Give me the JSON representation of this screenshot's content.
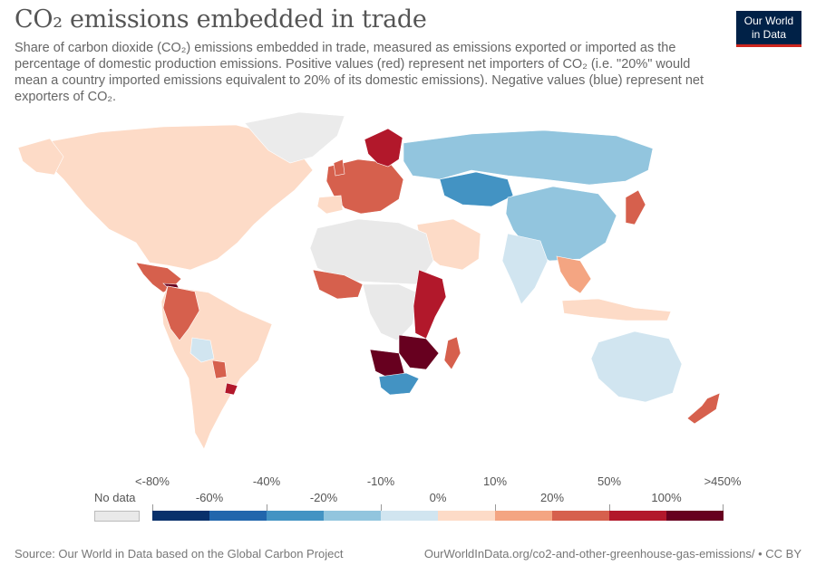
{
  "header": {
    "title": "CO₂ emissions embedded in trade",
    "subtitle": "Share of carbon dioxide (CO₂) emissions embedded in trade, measured as emissions exported or imported as the percentage of domestic production emissions. Positive values (red) represent net importers of CO₂ (i.e. \"20%\" would mean a country imported emissions equivalent to 20% of its domestic emissions). Negative values (blue) represent net exporters of CO₂."
  },
  "logo": {
    "line1": "Our World",
    "line2": "in Data"
  },
  "legend": {
    "no_data_label": "No data",
    "no_data_color": "#e9e9e9",
    "top_labels": [
      "<-80%",
      "-40%",
      "-10%",
      "10%",
      "50%",
      ">450%"
    ],
    "mid_labels": [
      "-60%",
      "-20%",
      "0%",
      "20%",
      "100%"
    ],
    "bins": [
      {
        "color": "#08306b"
      },
      {
        "color": "#2166ac"
      },
      {
        "color": "#4393c3"
      },
      {
        "color": "#92c5de"
      },
      {
        "color": "#d1e5f0"
      },
      {
        "color": "#fddbc7"
      },
      {
        "color": "#f4a582"
      },
      {
        "color": "#d6604d"
      },
      {
        "color": "#b2182b"
      },
      {
        "color": "#67001f"
      }
    ]
  },
  "map_colors": {
    "ocean": "#ffffff",
    "border": "#ffffff",
    "no_data": "#e9e9e9",
    "north_america": "#fddbc7",
    "greenland": "#ebebeb",
    "central_america": "#d6604d",
    "south_america": "#fddbc7",
    "bolivia": "#d1e5f0",
    "europe": "#d6604d",
    "scandinavia": "#b2182b",
    "russia": "#92c5de",
    "kazakhstan": "#4393c3",
    "china": "#92c5de",
    "india": "#d1e5f0",
    "middle_east": "#fddbc7",
    "africa_west": "#d6604d",
    "east_africa": "#b2182b",
    "southern_africa_dark": "#67001f",
    "south_africa": "#4393c3",
    "madagascar": "#d6604d",
    "australia": "#d1e5f0",
    "new_zealand": "#d6604d",
    "japan": "#d6604d",
    "southeast_asia": "#f4a582",
    "indonesia": "#fddbc7"
  },
  "footer": {
    "source": "Source: Our World in Data based on the Global Carbon Project",
    "url": "OurWorldInData.org/co2-and-other-greenhouse-gas-emissions/ • CC BY"
  }
}
